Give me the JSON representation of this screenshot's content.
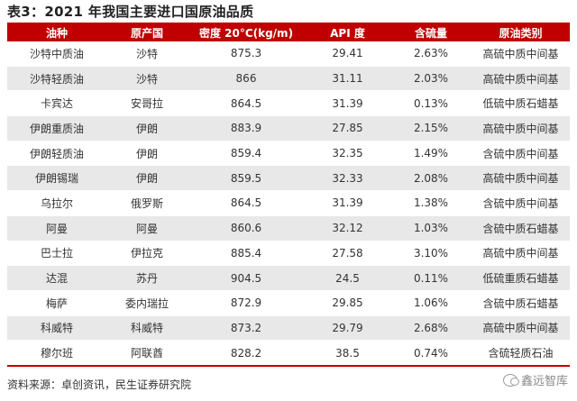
{
  "title": "表3：2021 年我国主要进口国原油品质",
  "colors": {
    "header_bg": "#c00000",
    "stripe": "#e8e8e8"
  },
  "table": {
    "headers": [
      "油种",
      "原产国",
      "密度 20°C(kg/m)",
      "API 度",
      "含硫量",
      "原油类别"
    ],
    "rows": [
      [
        "沙特中质油",
        "沙特",
        "875.3",
        "29.41",
        "2.63%",
        "高硫中质中间基"
      ],
      [
        "沙特轻质油",
        "沙特",
        "866",
        "31.11",
        "2.03%",
        "高硫中质中间基"
      ],
      [
        "卡宾达",
        "安哥拉",
        "864.5",
        "31.39",
        "0.13%",
        "低硫中质石蜡基"
      ],
      [
        "伊朗重质油",
        "伊朗",
        "883.9",
        "27.85",
        "2.15%",
        "高硫中质中间基"
      ],
      [
        "伊朗轻质油",
        "伊朗",
        "859.4",
        "32.35",
        "1.49%",
        "含硫中质中间基"
      ],
      [
        "伊朗锡瑞",
        "伊朗",
        "859.5",
        "32.33",
        "2.08%",
        "高硫中质中间基"
      ],
      [
        "乌拉尔",
        "俄罗斯",
        "864.5",
        "31.39",
        "1.38%",
        "含硫中质中间基"
      ],
      [
        "阿曼",
        "阿曼",
        "860.6",
        "32.12",
        "1.03%",
        "含硫中质石蜡基"
      ],
      [
        "巴士拉",
        "伊拉克",
        "885.4",
        "27.58",
        "3.10%",
        "高硫中质中间基"
      ],
      [
        "达混",
        "苏丹",
        "904.5",
        "24.5",
        "0.11%",
        "低硫重质石蜡基"
      ],
      [
        "梅萨",
        "委内瑞拉",
        "872.9",
        "29.85",
        "1.06%",
        "含硫中质石蜡基"
      ],
      [
        "科威特",
        "科威特",
        "873.2",
        "29.79",
        "2.68%",
        "高硫中质中间基"
      ],
      [
        "穆尔班",
        "阿联酋",
        "828.2",
        "38.5",
        "0.74%",
        "含硫轻质石油"
      ]
    ]
  },
  "source": "资料来源：卓创资讯，民生证券研究院",
  "watermark": {
    "text": "鑫远智库",
    "icon": "wechat-icon"
  }
}
